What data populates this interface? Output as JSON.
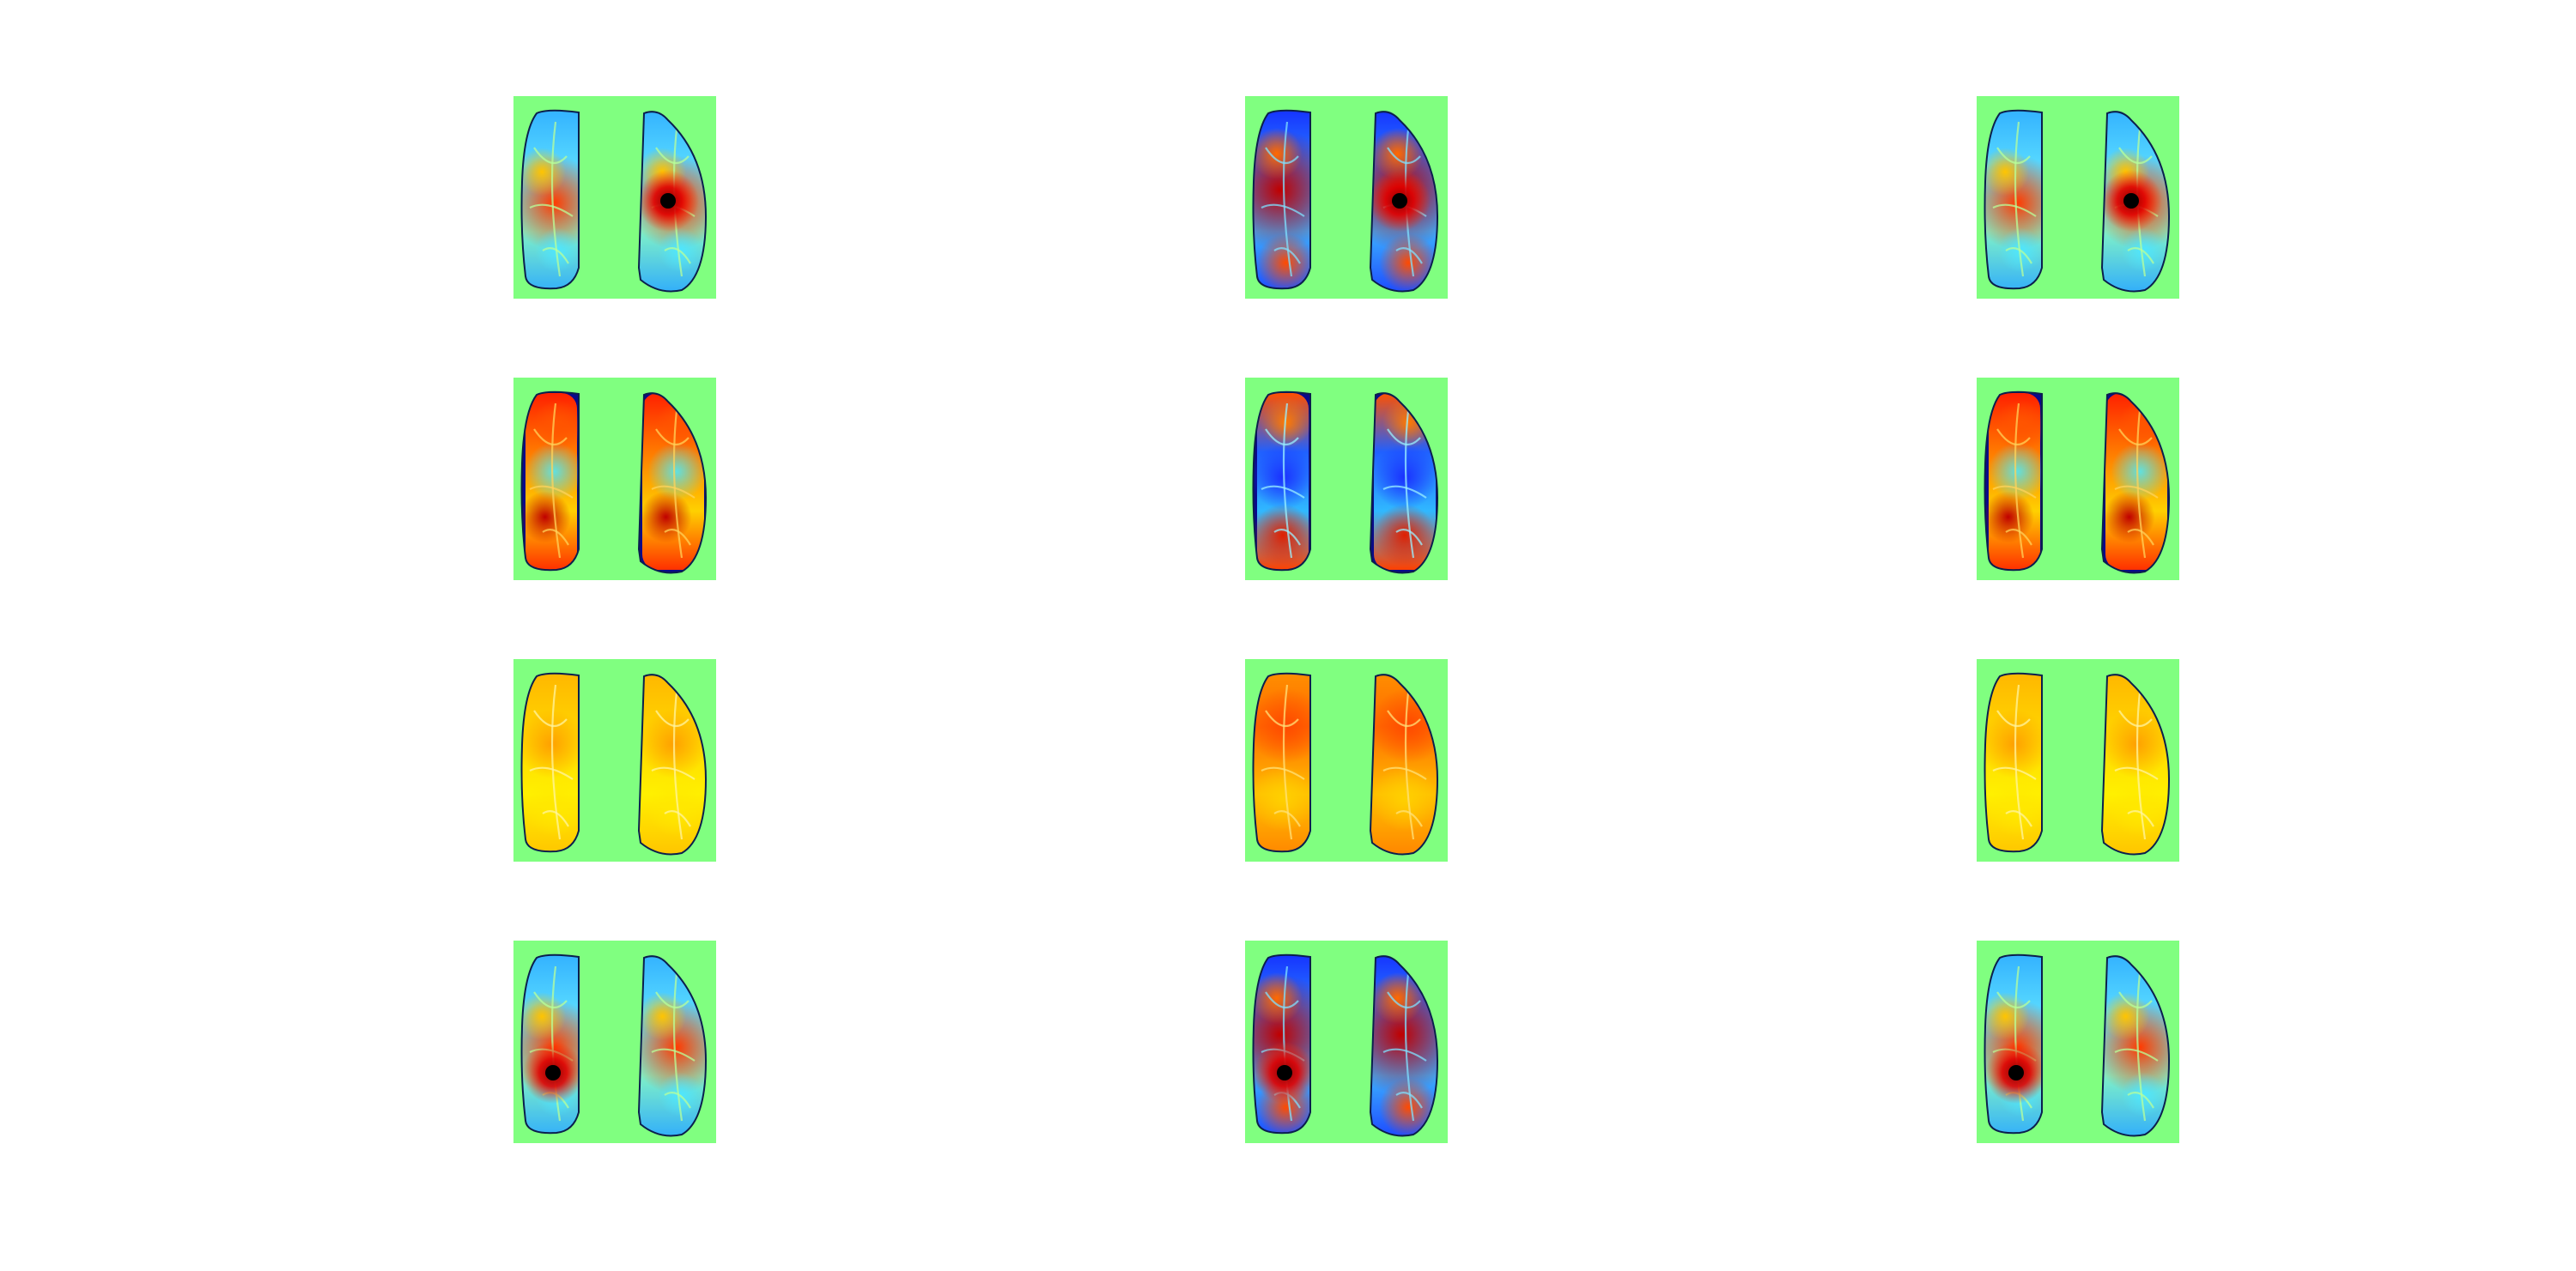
{
  "figure": {
    "background": "#ffffff",
    "panel_background": "#80ff80",
    "outline_color": "#0b1f4d",
    "colormap": "jet",
    "rows": 4,
    "cols": 3
  },
  "panels": [
    {
      "row": 1,
      "col": 1,
      "theme": "seed",
      "seed": "right"
    },
    {
      "row": 1,
      "col": 2,
      "theme": "seed-dominant",
      "seed": "right"
    },
    {
      "row": 1,
      "col": 3,
      "theme": "seed",
      "seed": "right"
    },
    {
      "row": 2,
      "col": 1,
      "theme": "warm-rim"
    },
    {
      "row": 2,
      "col": 2,
      "theme": "mixed-rim"
    },
    {
      "row": 2,
      "col": 3,
      "theme": "warm-rim"
    },
    {
      "row": 3,
      "col": 1,
      "theme": "yellow"
    },
    {
      "row": 3,
      "col": 2,
      "theme": "orange"
    },
    {
      "row": 3,
      "col": 3,
      "theme": "yellow"
    },
    {
      "row": 4,
      "col": 1,
      "theme": "seed",
      "seed": "left"
    },
    {
      "row": 4,
      "col": 2,
      "theme": "seed-dominant",
      "seed": "left"
    },
    {
      "row": 4,
      "col": 3,
      "theme": "seed",
      "seed": "left"
    }
  ]
}
